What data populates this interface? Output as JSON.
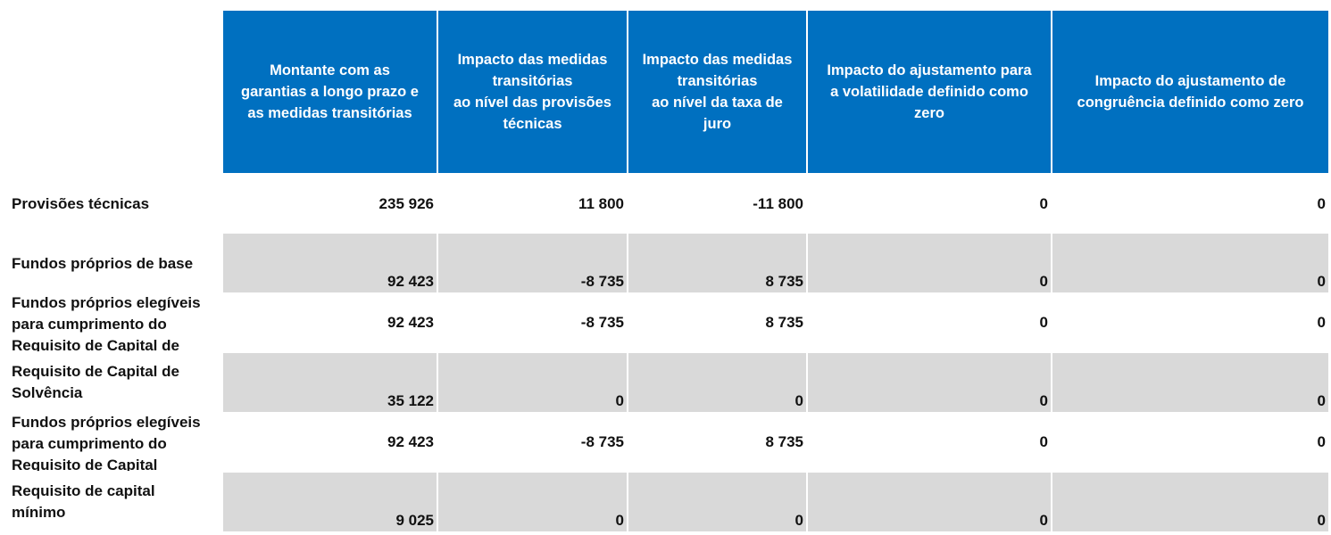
{
  "headers": [
    "Montante com as\ngarantias a longo prazo e\nas medidas transitórias",
    "Impacto das medidas\ntransitórias\nao nível das provisões\ntécnicas",
    "Impacto das medidas\ntransitórias\nao nível da taxa de\njuro",
    "Impacto do ajustamento para\na volatilidade definido como\nzero",
    "Impacto do ajustamento de\ncongruência definido como zero"
  ],
  "rows": [
    {
      "label": "Provisões técnicas",
      "values": [
        "235 926",
        "11 800",
        "-11 800",
        "0",
        "0"
      ]
    },
    {
      "label": "Fundos próprios de base",
      "values": [
        "92 423",
        "-8 735",
        "8 735",
        "0",
        "0"
      ]
    },
    {
      "label": " Fundos próprios elegíveis\npara cumprimento do\nRequisito de Capital de",
      "values": [
        "92 423",
        "-8 735",
        "8 735",
        "0",
        "0"
      ]
    },
    {
      "label": "Requisito de Capital de\nSolvência",
      "values": [
        "35 122",
        "0",
        "0",
        "0",
        "0"
      ]
    },
    {
      "label": "Fundos próprios elegíveis\npara cumprimento do\nRequisito de Capital",
      "values": [
        "92 423",
        "-8 735",
        "8 735",
        "0",
        "0"
      ]
    },
    {
      "label": "Requisito de capital\nmínimo",
      "values": [
        "9 025",
        "0",
        "0",
        "0",
        "0"
      ]
    }
  ],
  "colors": {
    "header_bg": "#0070c0",
    "shaded_row_bg": "#d9d9d9"
  }
}
